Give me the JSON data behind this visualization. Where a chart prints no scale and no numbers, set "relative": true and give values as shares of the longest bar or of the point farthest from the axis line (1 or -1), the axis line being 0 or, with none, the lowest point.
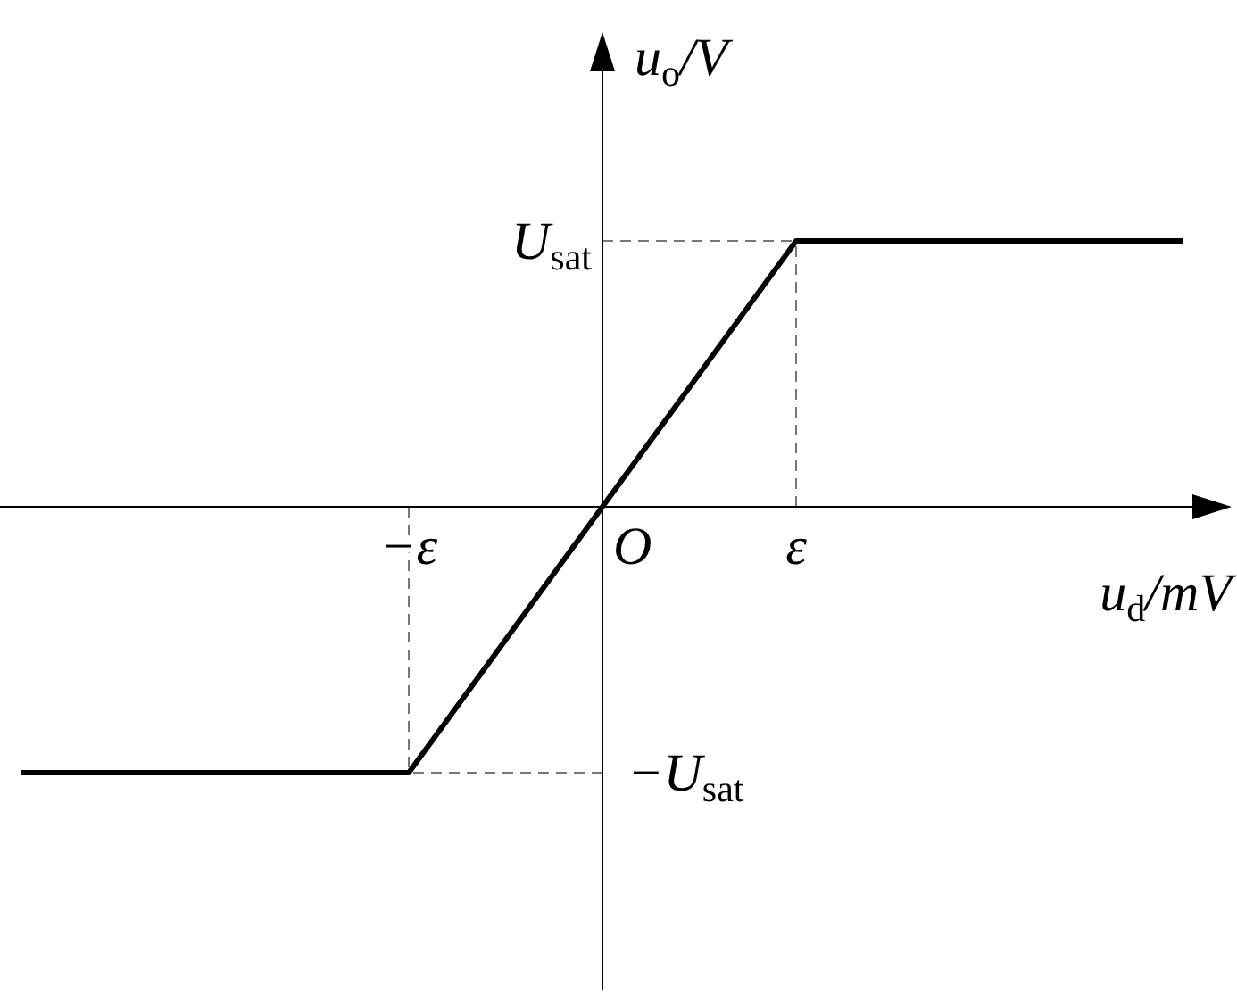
{
  "chart_data": {
    "type": "line",
    "xlabel": "u$_{d}$/mV",
    "ylabel": "u$_{o}$/V",
    "relative": true,
    "categories": [
      null,
      null,
      "−ε",
      null,
      "ε",
      null,
      null
    ],
    "annotations": [
      "O",
      "U$_{sat}$",
      "−U$_{sat}$"
    ],
    "series": [
      {
        "values": [
          -1,
          -1,
          -1,
          0,
          1,
          1,
          1
        ],
        "color": "#000000"
      }
    ],
    "line_style": "solid",
    "marker": "none"
  }
}
